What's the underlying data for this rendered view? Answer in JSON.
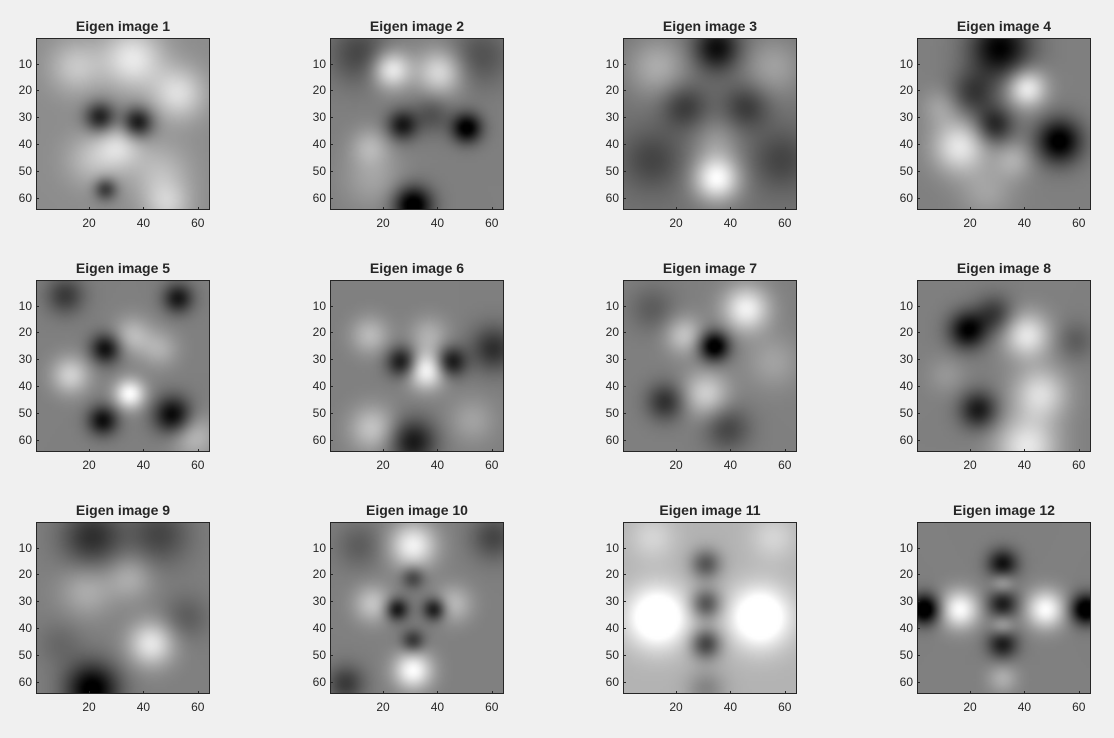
{
  "window": {
    "background": "#f0f0f0"
  },
  "chart_data": [
    {
      "type": "heatmap",
      "title": "Eigen image 1",
      "colormap": "gray",
      "size": [
        64,
        64
      ],
      "xlim": [
        0.5,
        64.5
      ],
      "ylim": [
        0.5,
        64.5
      ],
      "xticks": [
        20,
        40,
        60
      ],
      "yticks": [
        10,
        20,
        30,
        40,
        50,
        60
      ],
      "xticklabels": [
        "20",
        "40",
        "60"
      ],
      "yticklabels": [
        "10",
        "20",
        "30",
        "40",
        "50",
        "60"
      ],
      "blobs": [
        [
          14,
          10,
          7,
          0.5
        ],
        [
          35,
          7,
          8,
          0.8
        ],
        [
          52,
          20,
          7,
          0.7
        ],
        [
          23,
          29,
          4,
          -1.0
        ],
        [
          37,
          31,
          4,
          -1.1
        ],
        [
          30,
          40,
          6,
          0.6
        ],
        [
          20,
          45,
          7,
          0.4
        ],
        [
          25,
          56,
          3,
          -0.8
        ],
        [
          45,
          50,
          8,
          0.4
        ],
        [
          48,
          62,
          6,
          0.5
        ]
      ],
      "base": 0.55
    },
    {
      "type": "heatmap",
      "title": "Eigen image 2",
      "colormap": "gray",
      "size": [
        64,
        64
      ],
      "xlim": [
        0.5,
        64.5
      ],
      "ylim": [
        0.5,
        64.5
      ],
      "xticks": [
        20,
        40,
        60
      ],
      "yticks": [
        10,
        20,
        30,
        40,
        50,
        60
      ],
      "xticklabels": [
        "20",
        "40",
        "60"
      ],
      "yticklabels": [
        "10",
        "20",
        "30",
        "40",
        "50",
        "60"
      ],
      "blobs": [
        [
          10,
          5,
          8,
          -0.5
        ],
        [
          22,
          11,
          5,
          1.0
        ],
        [
          40,
          12,
          6,
          0.8
        ],
        [
          55,
          6,
          8,
          -0.4
        ],
        [
          26,
          32,
          4,
          -0.9
        ],
        [
          37,
          28,
          5,
          -0.4
        ],
        [
          50,
          33,
          4,
          -1.2
        ],
        [
          14,
          40,
          5,
          0.4
        ],
        [
          30,
          62,
          5,
          -1.3
        ],
        [
          15,
          52,
          8,
          0.3
        ]
      ],
      "base": 0.5
    },
    {
      "type": "heatmap",
      "title": "Eigen image 3",
      "colormap": "gray",
      "size": [
        64,
        64
      ],
      "xlim": [
        0.5,
        64.5
      ],
      "ylim": [
        0.5,
        64.5
      ],
      "xticks": [
        20,
        40,
        60
      ],
      "yticks": [
        10,
        20,
        30,
        40,
        50,
        60
      ],
      "xticklabels": [
        "20",
        "40",
        "60"
      ],
      "yticklabels": [
        "10",
        "20",
        "30",
        "40",
        "50",
        "60"
      ],
      "blobs": [
        [
          34,
          3,
          6,
          -0.9
        ],
        [
          12,
          10,
          8,
          0.5
        ],
        [
          55,
          10,
          8,
          0.4
        ],
        [
          22,
          25,
          6,
          -0.5
        ],
        [
          45,
          25,
          6,
          -0.5
        ],
        [
          34,
          52,
          6,
          1.2
        ],
        [
          10,
          45,
          8,
          -0.4
        ],
        [
          58,
          45,
          8,
          -0.4
        ],
        [
          34,
          38,
          6,
          0.3
        ]
      ],
      "base": 0.45
    },
    {
      "type": "heatmap",
      "title": "Eigen image 4",
      "colormap": "gray",
      "size": [
        64,
        64
      ],
      "xlim": [
        0.5,
        64.5
      ],
      "ylim": [
        0.5,
        64.5
      ],
      "xticks": [
        20,
        40,
        60
      ],
      "yticks": [
        10,
        20,
        30,
        40,
        50,
        60
      ],
      "xticklabels": [
        "20",
        "40",
        "60"
      ],
      "yticklabels": [
        "10",
        "20",
        "30",
        "40",
        "50",
        "60"
      ],
      "blobs": [
        [
          30,
          3,
          8,
          -1.1
        ],
        [
          40,
          18,
          5,
          1.0
        ],
        [
          20,
          20,
          6,
          -0.6
        ],
        [
          28,
          32,
          5,
          -0.8
        ],
        [
          52,
          38,
          6,
          -1.2
        ],
        [
          15,
          40,
          7,
          0.9
        ],
        [
          35,
          45,
          5,
          0.4
        ],
        [
          25,
          57,
          7,
          0.3
        ],
        [
          8,
          25,
          5,
          0.3
        ]
      ],
      "base": 0.5
    },
    {
      "type": "heatmap",
      "title": "Eigen image 5",
      "colormap": "gray",
      "size": [
        64,
        64
      ],
      "xlim": [
        0.5,
        64.5
      ],
      "ylim": [
        0.5,
        64.5
      ],
      "xticks": [
        20,
        40,
        60
      ],
      "yticks": [
        10,
        20,
        30,
        40,
        50,
        60
      ],
      "xticklabels": [
        "20",
        "40",
        "60"
      ],
      "yticklabels": [
        "10",
        "20",
        "30",
        "40",
        "50",
        "60"
      ],
      "blobs": [
        [
          10,
          5,
          5,
          -0.6
        ],
        [
          52,
          6,
          4,
          -0.9
        ],
        [
          25,
          25,
          4,
          -1.0
        ],
        [
          35,
          20,
          5,
          0.5
        ],
        [
          12,
          35,
          5,
          0.7
        ],
        [
          34,
          42,
          4,
          1.1
        ],
        [
          24,
          52,
          4,
          -1.0
        ],
        [
          50,
          50,
          5,
          -1.1
        ],
        [
          45,
          25,
          5,
          0.4
        ],
        [
          58,
          58,
          6,
          0.5
        ]
      ],
      "base": 0.5
    },
    {
      "type": "heatmap",
      "title": "Eigen image 6",
      "colormap": "gray",
      "size": [
        64,
        64
      ],
      "xlim": [
        0.5,
        64.5
      ],
      "ylim": [
        0.5,
        64.5
      ],
      "xticks": [
        20,
        40,
        60
      ],
      "yticks": [
        10,
        20,
        30,
        40,
        50,
        60
      ],
      "xticklabels": [
        "20",
        "40",
        "60"
      ],
      "yticklabels": [
        "10",
        "20",
        "30",
        "40",
        "50",
        "60"
      ],
      "blobs": [
        [
          14,
          20,
          5,
          0.5
        ],
        [
          26,
          30,
          4,
          -1.0
        ],
        [
          44,
          30,
          4,
          -1.0
        ],
        [
          35,
          33,
          5,
          1.1
        ],
        [
          36,
          20,
          5,
          0.4
        ],
        [
          60,
          25,
          6,
          -0.7
        ],
        [
          15,
          55,
          6,
          0.6
        ],
        [
          30,
          60,
          6,
          -0.9
        ],
        [
          52,
          52,
          6,
          0.3
        ]
      ],
      "base": 0.5
    },
    {
      "type": "heatmap",
      "title": "Eigen image 7",
      "colormap": "gray",
      "size": [
        64,
        64
      ],
      "xlim": [
        0.5,
        64.5
      ],
      "ylim": [
        0.5,
        64.5
      ],
      "xticks": [
        20,
        40,
        60
      ],
      "yticks": [
        10,
        20,
        30,
        40,
        50,
        60
      ],
      "xticklabels": [
        "20",
        "40",
        "60"
      ],
      "yticklabels": [
        "10",
        "20",
        "30",
        "40",
        "50",
        "60"
      ],
      "blobs": [
        [
          33,
          24,
          4,
          -1.3
        ],
        [
          45,
          10,
          6,
          1.0
        ],
        [
          22,
          20,
          5,
          0.6
        ],
        [
          30,
          42,
          6,
          0.7
        ],
        [
          15,
          45,
          5,
          -0.7
        ],
        [
          38,
          55,
          6,
          -0.5
        ],
        [
          55,
          30,
          7,
          0.3
        ],
        [
          10,
          10,
          6,
          -0.3
        ]
      ],
      "base": 0.5
    },
    {
      "type": "heatmap",
      "title": "Eigen image 8",
      "colormap": "gray",
      "size": [
        64,
        64
      ],
      "xlim": [
        0.5,
        64.5
      ],
      "ylim": [
        0.5,
        64.5
      ],
      "xticks": [
        20,
        40,
        60
      ],
      "yticks": [
        10,
        20,
        30,
        40,
        50,
        60
      ],
      "xticklabels": [
        "20",
        "40",
        "60"
      ],
      "yticklabels": [
        "10",
        "20",
        "30",
        "40",
        "50",
        "60"
      ],
      "blobs": [
        [
          18,
          18,
          5,
          -1.1
        ],
        [
          28,
          12,
          5,
          -0.6
        ],
        [
          22,
          48,
          5,
          -0.9
        ],
        [
          40,
          20,
          6,
          0.9
        ],
        [
          45,
          42,
          7,
          0.8
        ],
        [
          40,
          62,
          8,
          0.9
        ],
        [
          58,
          22,
          5,
          -0.3
        ],
        [
          10,
          35,
          5,
          0.2
        ]
      ],
      "base": 0.5
    },
    {
      "type": "heatmap",
      "title": "Eigen image 9",
      "colormap": "gray",
      "size": [
        64,
        64
      ],
      "xlim": [
        0.5,
        64.5
      ],
      "ylim": [
        0.5,
        64.5
      ],
      "xticks": [
        20,
        40,
        60
      ],
      "yticks": [
        10,
        20,
        30,
        40,
        50,
        60
      ],
      "xticklabels": [
        "20",
        "40",
        "60"
      ],
      "yticklabels": [
        "10",
        "20",
        "30",
        "40",
        "50",
        "60"
      ],
      "blobs": [
        [
          20,
          5,
          8,
          -0.7
        ],
        [
          45,
          4,
          8,
          -0.5
        ],
        [
          18,
          25,
          7,
          0.4
        ],
        [
          34,
          20,
          6,
          0.4
        ],
        [
          42,
          45,
          6,
          0.9
        ],
        [
          20,
          62,
          7,
          -1.2
        ],
        [
          55,
          35,
          6,
          -0.3
        ],
        [
          8,
          45,
          6,
          -0.2
        ]
      ],
      "base": 0.5
    },
    {
      "type": "heatmap",
      "title": "Eigen image 10",
      "colormap": "gray",
      "size": [
        64,
        64
      ],
      "xlim": [
        0.5,
        64.5
      ],
      "ylim": [
        0.5,
        64.5
      ],
      "xticks": [
        20,
        40,
        60
      ],
      "yticks": [
        10,
        20,
        30,
        40,
        50,
        60
      ],
      "xticklabels": [
        "20",
        "40",
        "60"
      ],
      "yticklabels": [
        "10",
        "20",
        "30",
        "40",
        "50",
        "60"
      ],
      "blobs": [
        [
          30,
          8,
          6,
          1.0
        ],
        [
          15,
          30,
          5,
          0.6
        ],
        [
          45,
          30,
          5,
          0.5
        ],
        [
          24,
          32,
          3,
          -1.0
        ],
        [
          38,
          32,
          3,
          -1.0
        ],
        [
          30,
          20,
          3,
          -0.6
        ],
        [
          30,
          44,
          3,
          -0.7
        ],
        [
          30,
          55,
          5,
          1.1
        ],
        [
          5,
          60,
          5,
          -0.6
        ],
        [
          60,
          5,
          6,
          -0.5
        ],
        [
          10,
          8,
          6,
          -0.3
        ]
      ],
      "base": 0.5
    },
    {
      "type": "heatmap",
      "title": "Eigen image 11",
      "colormap": "gray",
      "size": [
        64,
        64
      ],
      "xlim": [
        0.5,
        64.5
      ],
      "ylim": [
        0.5,
        64.5
      ],
      "xticks": [
        20,
        40,
        60
      ],
      "yticks": [
        10,
        20,
        30,
        40,
        50,
        60
      ],
      "xticklabels": [
        "20",
        "40",
        "60"
      ],
      "yticklabels": [
        "10",
        "20",
        "30",
        "40",
        "50",
        "60"
      ],
      "blobs": [
        [
          30,
          15,
          4,
          -0.8
        ],
        [
          30,
          30,
          4,
          -0.9
        ],
        [
          30,
          45,
          4,
          -1.0
        ],
        [
          12,
          35,
          8,
          1.1
        ],
        [
          50,
          35,
          8,
          1.1
        ],
        [
          30,
          62,
          5,
          -0.4
        ],
        [
          10,
          5,
          6,
          0.3
        ],
        [
          55,
          5,
          6,
          0.3
        ]
      ],
      "base": 0.7
    },
    {
      "type": "heatmap",
      "title": "Eigen image 12",
      "colormap": "gray",
      "size": [
        64,
        64
      ],
      "xlim": [
        0.5,
        64.5
      ],
      "ylim": [
        0.5,
        64.5
      ],
      "xticks": [
        20,
        40,
        60
      ],
      "yticks": [
        10,
        20,
        30,
        40,
        50,
        60
      ],
      "xticklabels": [
        "20",
        "40",
        "60"
      ],
      "yticklabels": [
        "10",
        "20",
        "30",
        "40",
        "50",
        "60"
      ],
      "blobs": [
        [
          2,
          32,
          4,
          -1.4
        ],
        [
          62,
          32,
          4,
          -1.4
        ],
        [
          15,
          32,
          5,
          1.1
        ],
        [
          47,
          32,
          5,
          1.1
        ],
        [
          31,
          15,
          4,
          -1.0
        ],
        [
          31,
          30,
          4,
          -0.9
        ],
        [
          31,
          45,
          4,
          -0.9
        ],
        [
          31,
          22,
          3,
          0.5
        ],
        [
          31,
          38,
          3,
          0.5
        ],
        [
          31,
          58,
          4,
          0.4
        ]
      ],
      "base": 0.5
    }
  ]
}
